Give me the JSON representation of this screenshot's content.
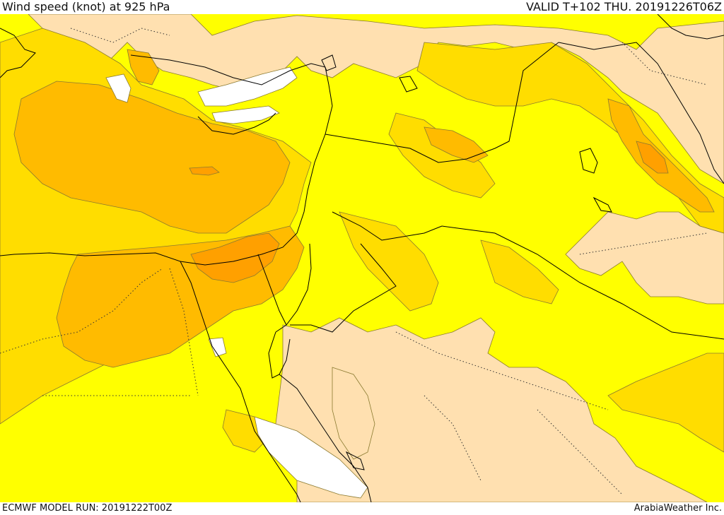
{
  "header": {
    "title": "Wind speed (knot) at 925 hPa",
    "valid": "VALID T+102 THU. 20191226T06Z"
  },
  "footer": {
    "model_run": "ECMWF MODEL RUN: 20191222T00Z",
    "credit": "ArabiaWeather Inc."
  },
  "colors": {
    "background_field": "#ffff00",
    "light": "#ffe0b0",
    "level2": "#ffdd00",
    "level3": "#ffbb00",
    "level4": "#ffa000",
    "calm": "#ffffff",
    "contour": "#8a7a30",
    "border": "#000000"
  }
}
